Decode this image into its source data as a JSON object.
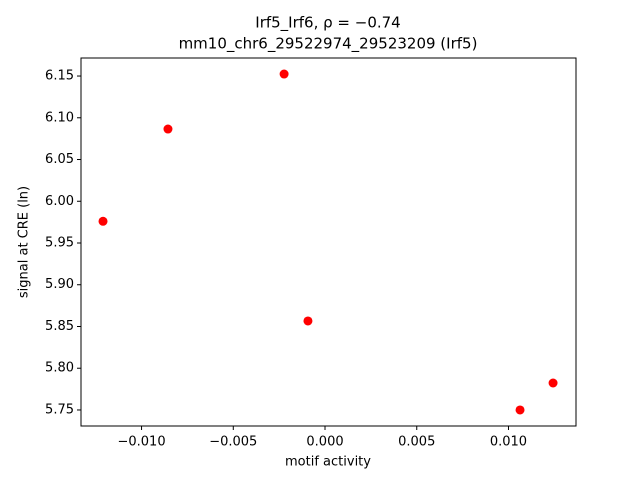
{
  "chart_data": {
    "type": "scatter",
    "title": "Irf5_Irf6, ρ = −0.74",
    "subtitle": "mm10_chr6_29522974_29523209 (Irf5)",
    "x_label": "motif activity",
    "y_label": "signal at CRE (ln)",
    "series": [
      {
        "color": "#ff0000",
        "x": [
          -0.0121,
          -0.00856,
          -0.00223,
          -0.00093,
          0.01063,
          0.01243
        ],
        "values": [
          5.976,
          6.0865,
          6.1524,
          5.8566,
          5.75,
          5.7823
        ]
      }
    ],
    "xlim": [
      -0.0133,
      0.01368
    ],
    "ylim": [
      5.7308,
      6.1716
    ],
    "xticks": [
      {
        "value": -0.01,
        "label": "−0.010"
      },
      {
        "value": -0.005,
        "label": "−0.005"
      },
      {
        "value": 0,
        "label": "0.000"
      },
      0.005,
      {
        "value": 0.01,
        "label": "0.010"
      }
    ],
    "yticks": [
      5.75,
      {
        "value": 5.8,
        "label": "5.80"
      },
      5.85,
      {
        "value": 5.9,
        "label": "5.90"
      },
      5.95,
      {
        "value": 6,
        "label": "6.00"
      },
      6.05,
      {
        "value": 6.1,
        "label": "6.10"
      },
      6.15
    ],
    "grid": false
  }
}
